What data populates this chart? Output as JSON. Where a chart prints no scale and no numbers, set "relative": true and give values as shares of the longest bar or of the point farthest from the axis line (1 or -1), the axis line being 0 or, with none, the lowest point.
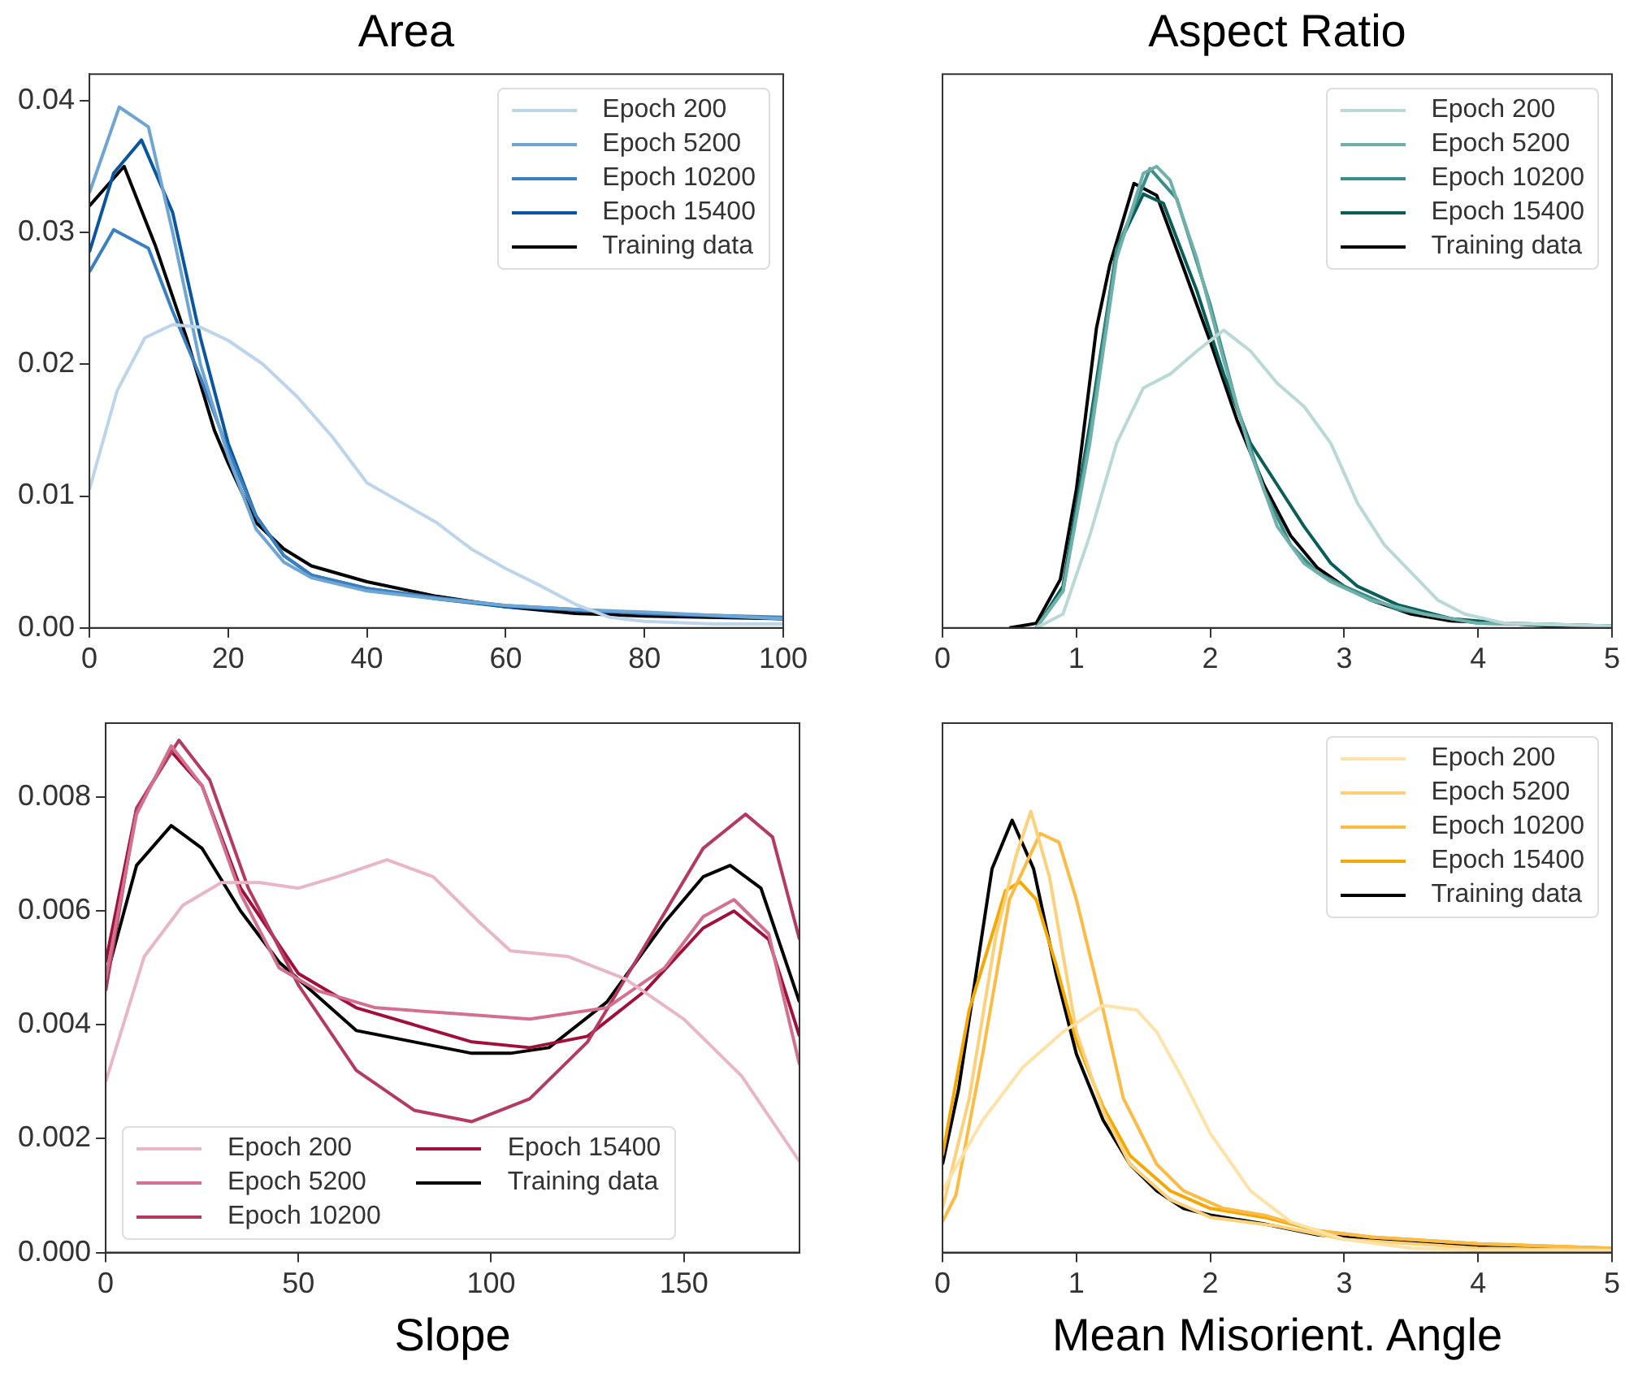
{
  "chart_data": [
    {
      "type": "line",
      "title": "Area",
      "xlim": [
        0,
        100
      ],
      "xticks": [
        0,
        20,
        40,
        60,
        80,
        100
      ],
      "ylim": [
        0,
        0.042
      ],
      "yticks": [
        {
          "value": 0,
          "label": "0.00"
        },
        {
          "value": 0.01,
          "label": "0.01"
        },
        {
          "value": 0.02,
          "label": "0.02"
        },
        {
          "value": 0.03,
          "label": "0.03"
        },
        {
          "value": 0.04,
          "label": "0.04"
        }
      ],
      "legend": "top right",
      "grid": false,
      "series": [
        {
          "name": "Epoch 200",
          "color": "#bdd5ea",
          "x": [
            0,
            4,
            8,
            12,
            16,
            20,
            25,
            30,
            35,
            40,
            45,
            50,
            55,
            60,
            65,
            70,
            75,
            80,
            90,
            100
          ],
          "values": [
            0.0105,
            0.018,
            0.022,
            0.023,
            0.0228,
            0.0218,
            0.02,
            0.0175,
            0.0145,
            0.011,
            0.0095,
            0.008,
            0.006,
            0.0045,
            0.0032,
            0.0018,
            0.0008,
            0.0005,
            0.0003,
            0.0003
          ]
        },
        {
          "name": "Epoch 5200",
          "color": "#6fa5d2",
          "x": [
            0,
            4.3,
            8.5,
            12,
            16,
            20,
            24,
            28,
            32,
            40,
            50,
            60,
            70,
            80,
            100
          ],
          "values": [
            0.033,
            0.0395,
            0.038,
            0.03,
            0.02,
            0.013,
            0.0075,
            0.005,
            0.0038,
            0.0028,
            0.0022,
            0.0017,
            0.0014,
            0.0012,
            0.0007
          ]
        },
        {
          "name": "Epoch 10200",
          "color": "#3a80c0",
          "x": [
            0,
            3.5,
            8.5,
            12,
            16,
            20,
            24,
            28,
            32,
            40,
            50,
            60,
            80,
            100
          ],
          "values": [
            0.027,
            0.0302,
            0.0288,
            0.024,
            0.019,
            0.0135,
            0.0085,
            0.0055,
            0.004,
            0.003,
            0.0023,
            0.0017,
            0.0011,
            0.0008
          ]
        },
        {
          "name": "Epoch 15400",
          "color": "#0a55a0",
          "x": [
            0,
            3.5,
            7.5,
            12,
            16,
            20,
            24,
            28,
            32,
            40,
            50,
            60,
            80,
            100
          ],
          "values": [
            0.0285,
            0.0345,
            0.037,
            0.0315,
            0.022,
            0.014,
            0.0085,
            0.0055,
            0.004,
            0.003,
            0.0022,
            0.0016,
            0.0011,
            0.0007
          ]
        },
        {
          "name": "Training data",
          "color": "#000000",
          "x": [
            0,
            5,
            9.5,
            14,
            18,
            20,
            24,
            28,
            32,
            40,
            50,
            60,
            70,
            80,
            100
          ],
          "values": [
            0.032,
            0.035,
            0.029,
            0.022,
            0.015,
            0.0125,
            0.008,
            0.006,
            0.0047,
            0.0035,
            0.0024,
            0.0016,
            0.0011,
            0.0009,
            0.0007
          ]
        }
      ]
    },
    {
      "type": "line",
      "title": "Aspect Ratio",
      "relative": true,
      "tick_labels": "x",
      "xlim": [
        0,
        5
      ],
      "xticks": [
        0,
        1,
        2,
        3,
        4,
        5
      ],
      "legend": "top right",
      "grid": false,
      "series": [
        {
          "name": "Epoch 200",
          "color": "#b9d9d6",
          "x": [
            0.7,
            0.9,
            1.1,
            1.3,
            1.5,
            1.7,
            1.9,
            2.1,
            2.3,
            2.5,
            2.7,
            2.9,
            3.1,
            3.3,
            3.5,
            3.7,
            3.9,
            4.2,
            5
          ],
          "values": [
            0,
            0.03,
            0.2,
            0.4,
            0.52,
            0.55,
            0.6,
            0.645,
            0.6,
            0.53,
            0.48,
            0.4,
            0.27,
            0.18,
            0.12,
            0.06,
            0.03,
            0.01,
            0.004
          ]
        },
        {
          "name": "Epoch 5200",
          "color": "#6fb0ab",
          "x": [
            0.7,
            0.9,
            1.1,
            1.3,
            1.5,
            1.6,
            1.7,
            1.9,
            2.1,
            2.3,
            2.5,
            2.7,
            2.9,
            3.2,
            3.6,
            4,
            5
          ],
          "values": [
            0,
            0.08,
            0.4,
            0.8,
            0.985,
            1,
            0.97,
            0.8,
            0.58,
            0.38,
            0.22,
            0.14,
            0.1,
            0.06,
            0.03,
            0.01,
            0.004
          ]
        },
        {
          "name": "Epoch 10200",
          "color": "#3a8e88",
          "x": [
            0.7,
            0.9,
            1.1,
            1.3,
            1.55,
            1.75,
            2,
            2.2,
            2.4,
            2.6,
            2.8,
            3,
            3.4,
            4,
            5
          ],
          "values": [
            0,
            0.08,
            0.42,
            0.82,
            0.995,
            0.93,
            0.7,
            0.48,
            0.3,
            0.18,
            0.12,
            0.09,
            0.04,
            0.01,
            0.004
          ]
        },
        {
          "name": "Epoch 15400",
          "color": "#0a5e5a",
          "x": [
            0.7,
            0.9,
            1.1,
            1.3,
            1.5,
            1.65,
            1.9,
            2.1,
            2.3,
            2.5,
            2.7,
            2.9,
            3.1,
            3.4,
            3.8,
            4.2,
            5
          ],
          "values": [
            0,
            0.09,
            0.44,
            0.82,
            0.94,
            0.92,
            0.73,
            0.55,
            0.4,
            0.31,
            0.22,
            0.14,
            0.09,
            0.05,
            0.02,
            0.01,
            0.004
          ]
        },
        {
          "name": "Training data",
          "color": "#000000",
          "x": [
            0.5,
            0.7,
            0.88,
            1,
            1.15,
            1.25,
            1.43,
            1.6,
            1.8,
            2,
            2.2,
            2.4,
            2.6,
            2.8,
            3,
            3.2,
            3.5,
            3.8,
            4.2,
            4.5,
            5
          ],
          "values": [
            0,
            0.01,
            0.105,
            0.3,
            0.65,
            0.787,
            0.963,
            0.937,
            0.78,
            0.62,
            0.45,
            0.31,
            0.2,
            0.13,
            0.09,
            0.06,
            0.03,
            0.015,
            0.01,
            0.005,
            0.004
          ]
        }
      ]
    },
    {
      "type": "line",
      "xlabel": "Slope",
      "xlim": [
        0,
        180
      ],
      "xticks": [
        0,
        50,
        100,
        150
      ],
      "ylim": [
        0,
        0.0093
      ],
      "yticks": [
        {
          "value": 0,
          "label": "0.000"
        },
        {
          "value": 0.002,
          "label": "0.002"
        },
        {
          "value": 0.004,
          "label": "0.004"
        },
        {
          "value": 0.006,
          "label": "0.006"
        },
        {
          "value": 0.008,
          "label": "0.008"
        }
      ],
      "legend": "bottom left",
      "grid": false,
      "series": [
        {
          "name": "Epoch 200",
          "color": "#e8b6c4",
          "x": [
            0,
            10,
            20,
            30,
            40,
            50,
            60,
            73,
            85,
            97,
            105,
            120,
            135,
            150,
            165,
            180
          ],
          "values": [
            0.003,
            0.0052,
            0.0061,
            0.0065,
            0.0065,
            0.0064,
            0.0066,
            0.0069,
            0.0066,
            0.0058,
            0.0053,
            0.0052,
            0.0048,
            0.0041,
            0.0031,
            0.0016
          ]
        },
        {
          "name": "Epoch 5200",
          "color": "#d2708e",
          "x": [
            0,
            8,
            17,
            25,
            35,
            45,
            55,
            70,
            90,
            110,
            130,
            145,
            155,
            163,
            172,
            180
          ],
          "values": [
            0.0048,
            0.0077,
            0.0089,
            0.0082,
            0.0063,
            0.005,
            0.0046,
            0.0043,
            0.0042,
            0.0041,
            0.0043,
            0.005,
            0.0059,
            0.0062,
            0.0056,
            0.0033
          ]
        },
        {
          "name": "Epoch 10200",
          "color": "#b43a60",
          "x": [
            0,
            8,
            19,
            27,
            37,
            50,
            65,
            80,
            95,
            110,
            125,
            140,
            155,
            166,
            173,
            180
          ],
          "values": [
            0.0046,
            0.0078,
            0.009,
            0.0083,
            0.0064,
            0.0047,
            0.0032,
            0.0025,
            0.0023,
            0.0027,
            0.0037,
            0.0054,
            0.0071,
            0.0077,
            0.0073,
            0.0055
          ]
        },
        {
          "name": "Epoch 15400",
          "color": "#a0103a",
          "x": [
            0,
            8,
            17,
            25,
            35,
            50,
            65,
            80,
            95,
            110,
            125,
            140,
            155,
            163,
            172,
            180
          ],
          "values": [
            0.0051,
            0.0078,
            0.0088,
            0.0082,
            0.0064,
            0.0049,
            0.0043,
            0.004,
            0.0037,
            0.0036,
            0.0038,
            0.0046,
            0.0057,
            0.006,
            0.0055,
            0.0038
          ]
        },
        {
          "name": "Training data",
          "color": "#000000",
          "x": [
            0,
            8,
            17,
            25,
            35,
            45,
            55,
            65,
            80,
            95,
            105,
            115,
            130,
            145,
            155,
            162,
            170,
            180
          ],
          "values": [
            0.0048,
            0.0068,
            0.0075,
            0.0071,
            0.006,
            0.0051,
            0.0045,
            0.0039,
            0.0037,
            0.0035,
            0.0035,
            0.0036,
            0.0044,
            0.0058,
            0.0066,
            0.0068,
            0.0064,
            0.0044
          ]
        }
      ]
    },
    {
      "type": "line",
      "xlabel": "Mean Misorient. Angle",
      "relative": true,
      "tick_labels": "x",
      "xlim": [
        0,
        5
      ],
      "xticks": [
        0,
        1,
        2,
        3,
        4,
        5
      ],
      "legend": "top right",
      "grid": false,
      "series": [
        {
          "name": "Epoch 200",
          "color": "#fde3a8",
          "x": [
            0,
            0.3,
            0.6,
            0.9,
            1.2,
            1.45,
            1.6,
            1.8,
            2,
            2.3,
            2.6,
            3,
            3.5,
            4,
            5
          ],
          "values": [
            0.14,
            0.3,
            0.42,
            0.5,
            0.56,
            0.55,
            0.5,
            0.39,
            0.27,
            0.14,
            0.07,
            0.03,
            0.01,
            0.005,
            0.005
          ]
        },
        {
          "name": "Epoch 5200",
          "color": "#fdd07a",
          "x": [
            0,
            0.2,
            0.4,
            0.55,
            0.66,
            0.8,
            1,
            1.2,
            1.4,
            1.7,
            2,
            2.5,
            3,
            4,
            5
          ],
          "values": [
            0.1,
            0.35,
            0.72,
            0.9,
            1,
            0.85,
            0.5,
            0.32,
            0.2,
            0.12,
            0.08,
            0.06,
            0.03,
            0.01,
            0.005
          ]
        },
        {
          "name": "Epoch 10200",
          "color": "#fbbb45",
          "x": [
            0,
            0.1,
            0.3,
            0.5,
            0.73,
            0.87,
            1,
            1.2,
            1.35,
            1.6,
            1.8,
            2.1,
            2.4,
            2.8,
            3.2,
            4,
            5
          ],
          "values": [
            0.07,
            0.13,
            0.45,
            0.8,
            0.95,
            0.93,
            0.8,
            0.55,
            0.35,
            0.2,
            0.14,
            0.1,
            0.085,
            0.05,
            0.035,
            0.02,
            0.01
          ]
        },
        {
          "name": "Epoch 15400",
          "color": "#f6a800",
          "x": [
            0,
            0.2,
            0.47,
            0.58,
            0.7,
            0.85,
            1,
            1.2,
            1.4,
            1.7,
            2,
            2.4,
            2.8,
            3.2,
            4,
            5
          ],
          "values": [
            0.22,
            0.55,
            0.82,
            0.84,
            0.8,
            0.65,
            0.48,
            0.33,
            0.22,
            0.14,
            0.1,
            0.08,
            0.05,
            0.035,
            0.02,
            0.01
          ]
        },
        {
          "name": "Training data",
          "color": "#000000",
          "x": [
            0,
            0.12,
            0.37,
            0.52,
            0.68,
            0.85,
            1,
            1.2,
            1.4,
            1.6,
            1.8,
            2,
            2.4,
            2.8,
            3.2,
            4,
            5
          ],
          "values": [
            0.2,
            0.37,
            0.87,
            0.98,
            0.87,
            0.63,
            0.45,
            0.3,
            0.2,
            0.14,
            0.1,
            0.085,
            0.065,
            0.04,
            0.03,
            0.015,
            0.01
          ]
        }
      ]
    }
  ]
}
